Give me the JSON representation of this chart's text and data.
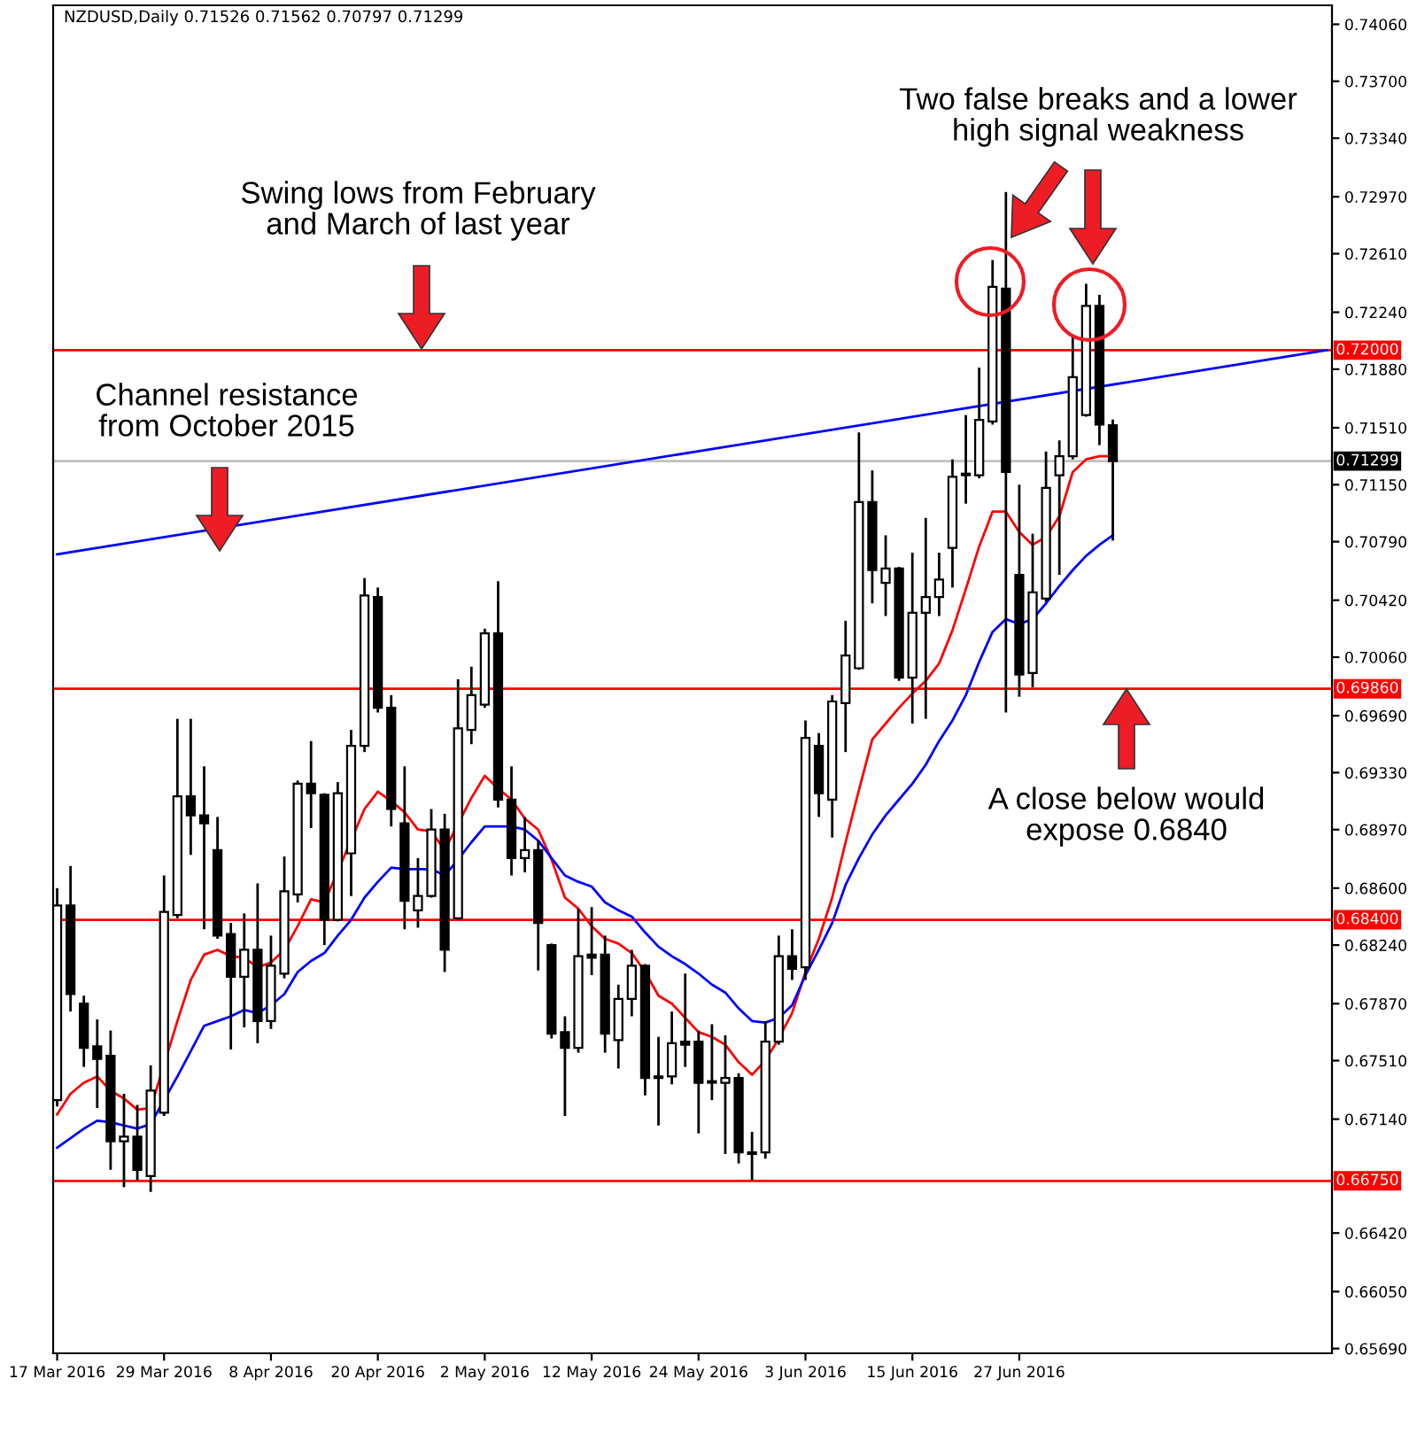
{
  "chart_data": {
    "type": "candlestick",
    "title": "NZDUSD,Daily 0.71526 0.71562 0.70797 0.71299",
    "annotations": [
      "Swing lows from February\nand March of last year",
      "Channel resistance\nfrom October 2015",
      "Two false breaks and a lower\nhigh signal weakness",
      "A close below would\nexpose 0.6840"
    ],
    "categories": [
      "17 Mar 2016",
      null,
      null,
      null,
      null,
      null,
      null,
      null,
      "29 Mar 2016",
      null,
      null,
      null,
      null,
      null,
      null,
      null,
      "8 Apr 2016",
      null,
      null,
      null,
      null,
      null,
      null,
      null,
      "20 Apr 2016",
      null,
      null,
      null,
      null,
      null,
      null,
      null,
      "2 May 2016",
      null,
      null,
      null,
      null,
      null,
      null,
      null,
      "12 May 2016",
      null,
      null,
      null,
      null,
      null,
      null,
      null,
      "24 May 2016",
      null,
      null,
      null,
      null,
      null,
      null,
      null,
      "3 Jun 2016",
      null,
      null,
      null,
      null,
      null,
      null,
      null,
      "15 Jun 2016",
      null,
      null,
      null,
      null,
      null,
      null,
      null,
      "27 Jun 2016",
      null,
      null,
      null,
      null,
      null,
      null,
      null,
      null,
      null,
      null,
      null,
      null,
      null,
      null,
      null,
      null,
      null,
      null,
      null,
      null,
      null,
      null,
      null
    ],
    "ohlc": [
      [
        0.6726,
        0.686,
        0.6722,
        0.6849
      ],
      [
        0.6849,
        0.6874,
        0.6782,
        0.6793
      ],
      [
        0.6787,
        0.6792,
        0.6747,
        0.6759
      ],
      [
        0.676,
        0.6777,
        0.6721,
        0.6752
      ],
      [
        0.6754,
        0.677,
        0.6682,
        0.67
      ],
      [
        0.67,
        0.673,
        0.6671,
        0.6703
      ],
      [
        0.6703,
        0.6723,
        0.6675,
        0.6682
      ],
      [
        0.6678,
        0.6748,
        0.6668,
        0.6732
      ],
      [
        0.6718,
        0.6868,
        0.6716,
        0.6845
      ],
      [
        0.6843,
        0.6967,
        0.6841,
        0.6918
      ],
      [
        0.6918,
        0.6967,
        0.6881,
        0.6906
      ],
      [
        0.6906,
        0.6937,
        0.6834,
        0.6901
      ],
      [
        0.6884,
        0.6905,
        0.6828,
        0.683
      ],
      [
        0.6831,
        0.6838,
        0.6758,
        0.6804
      ],
      [
        0.6804,
        0.6844,
        0.6772,
        0.6821
      ],
      [
        0.6821,
        0.6863,
        0.6762,
        0.6776
      ],
      [
        0.6776,
        0.683,
        0.6771,
        0.6811
      ],
      [
        0.6806,
        0.688,
        0.6803,
        0.6858
      ],
      [
        0.6856,
        0.6928,
        0.6851,
        0.6926
      ],
      [
        0.6926,
        0.6953,
        0.6898,
        0.692
      ],
      [
        0.6919,
        0.692,
        0.6824,
        0.684
      ],
      [
        0.684,
        0.6927,
        0.6839,
        0.692
      ],
      [
        0.6882,
        0.696,
        0.6855,
        0.695
      ],
      [
        0.695,
        0.7056,
        0.6946,
        0.7045
      ],
      [
        0.7044,
        0.705,
        0.6971,
        0.6974
      ],
      [
        0.6974,
        0.6982,
        0.6899,
        0.691
      ],
      [
        0.6901,
        0.6937,
        0.6834,
        0.6852
      ],
      [
        0.6846,
        0.6879,
        0.6835,
        0.6855
      ],
      [
        0.6855,
        0.691,
        0.6854,
        0.6897
      ],
      [
        0.6897,
        0.6907,
        0.6807,
        0.6821
      ],
      [
        0.6841,
        0.6992,
        0.684,
        0.6961
      ],
      [
        0.696,
        0.7,
        0.6951,
        0.6982
      ],
      [
        0.6976,
        0.7024,
        0.6974,
        0.7021
      ],
      [
        0.7021,
        0.7054,
        0.6911,
        0.6916
      ],
      [
        0.6916,
        0.6937,
        0.6868,
        0.6879
      ],
      [
        0.6879,
        0.6905,
        0.687,
        0.6884
      ],
      [
        0.6884,
        0.689,
        0.6808,
        0.6838
      ],
      [
        0.6824,
        0.6825,
        0.6765,
        0.6768
      ],
      [
        0.6769,
        0.6779,
        0.6716,
        0.6759
      ],
      [
        0.6759,
        0.6847,
        0.6756,
        0.6817
      ],
      [
        0.6818,
        0.6848,
        0.6805,
        0.6816
      ],
      [
        0.6818,
        0.683,
        0.6756,
        0.6768
      ],
      [
        0.6764,
        0.6799,
        0.6746,
        0.679
      ],
      [
        0.679,
        0.6821,
        0.6779,
        0.6811
      ],
      [
        0.6811,
        0.6812,
        0.6729,
        0.674
      ],
      [
        0.6741,
        0.6766,
        0.671,
        0.674
      ],
      [
        0.6741,
        0.6782,
        0.6736,
        0.6762
      ],
      [
        0.6763,
        0.6806,
        0.6747,
        0.6761
      ],
      [
        0.6763,
        0.677,
        0.6705,
        0.6737
      ],
      [
        0.6738,
        0.6774,
        0.6726,
        0.6737
      ],
      [
        0.6737,
        0.6767,
        0.6692,
        0.674
      ],
      [
        0.674,
        0.6743,
        0.6686,
        0.6693
      ],
      [
        0.6692,
        0.6706,
        0.6675,
        0.6693
      ],
      [
        0.6693,
        0.6776,
        0.6689,
        0.6763
      ],
      [
        0.6763,
        0.683,
        0.6761,
        0.6817
      ],
      [
        0.6817,
        0.6834,
        0.6802,
        0.6809
      ],
      [
        0.681,
        0.6966,
        0.6802,
        0.6955
      ],
      [
        0.695,
        0.6958,
        0.6905,
        0.692
      ],
      [
        0.6916,
        0.6982,
        0.6892,
        0.6978
      ],
      [
        0.6977,
        0.7029,
        0.6946,
        0.7007
      ],
      [
        0.6999,
        0.7148,
        0.6998,
        0.7104
      ],
      [
        0.7104,
        0.7124,
        0.704,
        0.7061
      ],
      [
        0.7053,
        0.7083,
        0.7032,
        0.7062
      ],
      [
        0.7062,
        0.7063,
        0.6991,
        0.6993
      ],
      [
        0.6993,
        0.7072,
        0.6964,
        0.7034
      ],
      [
        0.7034,
        0.7094,
        0.6967,
        0.7044
      ],
      [
        0.7044,
        0.7072,
        0.7032,
        0.7055
      ],
      [
        0.7075,
        0.7131,
        0.705,
        0.712
      ],
      [
        0.7122,
        0.7159,
        0.7103,
        0.7121
      ],
      [
        0.7121,
        0.7189,
        0.7119,
        0.7156
      ],
      [
        0.7155,
        0.7257,
        0.7153,
        0.724
      ],
      [
        0.7239,
        0.73,
        0.6971,
        0.7123
      ],
      [
        0.7058,
        0.7115,
        0.6981,
        0.6995
      ],
      [
        0.6996,
        0.7084,
        0.6987,
        0.7047
      ],
      [
        0.7043,
        0.7136,
        0.7041,
        0.7113
      ],
      [
        0.7121,
        0.7143,
        0.7058,
        0.7133
      ],
      [
        0.7133,
        0.7209,
        0.7131,
        0.7183
      ],
      [
        0.7159,
        0.7242,
        0.7158,
        0.7228
      ],
      [
        0.7228,
        0.7235,
        0.714,
        0.7153
      ],
      [
        0.71526,
        0.71562,
        0.70797,
        0.71299
      ],
      null,
      null,
      null,
      null,
      null,
      null,
      null,
      null,
      null,
      null,
      null,
      null,
      null,
      null,
      null,
      null
    ],
    "series": [
      {
        "type": "line",
        "color": "#ff0000",
        "values": [
          0.6717,
          0.673,
          0.6737,
          0.6741,
          0.6732,
          0.6727,
          0.672,
          0.6721,
          null,
          0.6776,
          0.6802,
          0.6818,
          0.6821,
          0.6817,
          0.6816,
          0.681,
          0.6813,
          0.6821,
          0.6836,
          0.6853,
          0.6851,
          null,
          null,
          0.691,
          0.6921,
          0.6915,
          0.6908,
          0.6897,
          0.6896,
          0.6884,
          null,
          0.6917,
          0.6931,
          0.6923,
          0.6916,
          0.6904,
          0.6897,
          0.6878,
          0.6854,
          0.6847,
          0.6836,
          0.6828,
          0.6825,
          0.6819,
          0.6807,
          0.6792,
          0.6787,
          0.6778,
          0.6769,
          0.6766,
          0.6761,
          0.675,
          0.6742,
          0.6751,
          0.6765,
          0.6781,
          0.6807,
          0.6828,
          0.6854,
          0.6889,
          0.6922,
          0.6954,
          0.6964,
          0.6974,
          0.6983,
          0.6991,
          0.7002,
          0.7023,
          0.7049,
          0.7076,
          0.7098,
          0.7098,
          0.7085,
          0.7077,
          0.7082,
          0.7095,
          0.7123,
          0.7131,
          0.7133,
          0.7133,
          null,
          null,
          null,
          null,
          null,
          null,
          null,
          null,
          null,
          null,
          null,
          null,
          null,
          null,
          null,
          null
        ]
      },
      {
        "type": "line",
        "color": "#0000ff",
        "values": [
          0.6696,
          0.6702,
          0.6708,
          0.6713,
          0.6712,
          0.671,
          0.6708,
          0.6711,
          null,
          0.6741,
          0.6757,
          0.6773,
          0.6776,
          0.6779,
          0.6783,
          0.6781,
          0.6786,
          0.6793,
          0.6807,
          0.6814,
          0.6819,
          0.683,
          0.684,
          0.6854,
          0.6864,
          0.6873,
          0.6872,
          0.6872,
          0.6872,
          0.6868,
          0.6878,
          0.6889,
          0.6899,
          0.6899,
          0.6899,
          0.6897,
          0.689,
          0.6879,
          0.6868,
          0.6864,
          0.6861,
          0.6851,
          0.6846,
          0.6842,
          0.6832,
          0.6823,
          0.6817,
          0.6812,
          0.6806,
          0.6799,
          0.6794,
          0.6784,
          0.6776,
          0.6775,
          0.6778,
          0.6786,
          0.6805,
          0.6821,
          0.6838,
          0.6862,
          0.6879,
          0.6894,
          0.6906,
          0.6916,
          0.6926,
          0.6938,
          0.6953,
          0.6966,
          0.6982,
          0.7003,
          0.7022,
          0.703,
          0.7027,
          0.703,
          0.704,
          0.7051,
          0.7061,
          0.707,
          0.7077,
          0.7083,
          null,
          null,
          null,
          null,
          null,
          null,
          null,
          null,
          null,
          null,
          null,
          null,
          null,
          null,
          null,
          null
        ]
      },
      {
        "type": "line",
        "color": "#0000ff",
        "values": [
          0.7071,
          null,
          null,
          null,
          null,
          null,
          null,
          null,
          null,
          null,
          null,
          null,
          null,
          null,
          null,
          null,
          null,
          null,
          null,
          null,
          null,
          null,
          null,
          null,
          null,
          null,
          null,
          null,
          null,
          null,
          null,
          null,
          null,
          null,
          null,
          null,
          null,
          null,
          null,
          null,
          null,
          null,
          null,
          null,
          null,
          null,
          null,
          null,
          null,
          null,
          null,
          null,
          null,
          null,
          null,
          null,
          null,
          null,
          null,
          null,
          null,
          null,
          null,
          null,
          null,
          null,
          null,
          null,
          null,
          null,
          null,
          null,
          null,
          null,
          null,
          null,
          null,
          null,
          null,
          null,
          null,
          null,
          null,
          null,
          null,
          null,
          null,
          null,
          null,
          null,
          null,
          null,
          null,
          null,
          null,
          0.72
        ]
      }
    ],
    "ref_lines": [
      {
        "axis": "y",
        "value": 0.72,
        "label": "0.72000",
        "color": "#ff0000"
      },
      {
        "axis": "y",
        "value": 0.6986,
        "label": "0.69860",
        "color": "#ff0000"
      },
      {
        "axis": "y",
        "value": 0.684,
        "label": "0.68400",
        "color": "#ff0000"
      },
      {
        "axis": "y",
        "value": 0.6675,
        "label": "0.66750",
        "color": "#ff0000"
      },
      {
        "axis": "y",
        "value": 0.71299,
        "label": "0.71299",
        "color": "#c0c0c0"
      }
    ],
    "ylim": [
      0.6566,
      0.7418
    ],
    "yticks": [
      {
        "value": 0.7406,
        "label": "0.74060"
      },
      {
        "value": 0.737,
        "label": "0.73700"
      },
      {
        "value": 0.7334,
        "label": "0.73340"
      },
      {
        "value": 0.7297,
        "label": "0.72970"
      },
      {
        "value": 0.7261,
        "label": "0.72610"
      },
      {
        "value": 0.7224,
        "label": "0.72240"
      },
      {
        "value": 0.7188,
        "label": "0.71880"
      },
      {
        "value": 0.7151,
        "label": "0.71510"
      },
      {
        "value": 0.7115,
        "label": "0.71150"
      },
      {
        "value": 0.7079,
        "label": "0.70790"
      },
      {
        "value": 0.7042,
        "label": "0.70420"
      },
      {
        "value": 0.7006,
        "label": "0.70060"
      },
      {
        "value": 0.6969,
        "label": "0.69690"
      },
      {
        "value": 0.6933,
        "label": "0.69330"
      },
      {
        "value": 0.6897,
        "label": "0.68970"
      },
      {
        "value": 0.686,
        "label": "0.68600"
      },
      {
        "value": 0.6824,
        "label": "0.68240"
      },
      {
        "value": 0.6787,
        "label": "0.67870"
      },
      {
        "value": 0.6751,
        "label": "0.67510"
      },
      {
        "value": 0.6714,
        "label": "0.67140"
      },
      {
        "value": 0.6642,
        "label": "0.66420"
      },
      {
        "value": 0.6605,
        "label": "0.66050"
      },
      {
        "value": 0.6569,
        "label": "0.65690"
      }
    ]
  }
}
